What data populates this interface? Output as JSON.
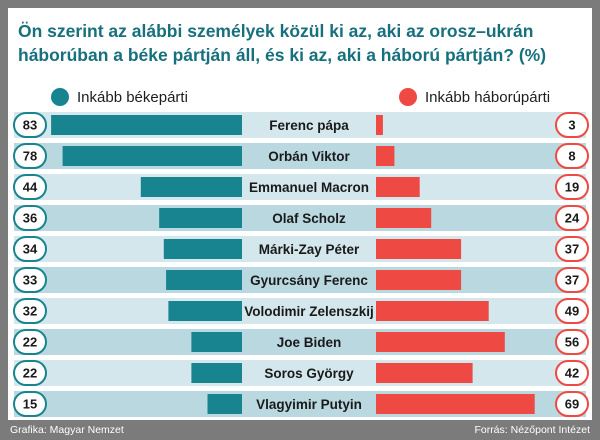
{
  "title_lines": [
    "Ön szerint az alábbi személyek közül ki az, aki az orosz–ukrán",
    "háborúban a béke pártján áll, és ki az, aki a háború pártján? (%)"
  ],
  "footer": {
    "left": "Grafika: Magyar Nemzet",
    "right": "Forrás: Nézőpont Intézet"
  },
  "colors": {
    "peace": "#17848f",
    "war": "#ee4a43",
    "title": "#17707d",
    "row_light": "#d3e7ec",
    "row_dark": "#b9d8e0",
    "frame": "#7b7b7b"
  },
  "chart_data": {
    "type": "bar",
    "categories": [
      "Ferenc pápa",
      "Orbán Viktor",
      "Emmanuel Macron",
      "Olaf Scholz",
      "Márki-Zay Péter",
      "Gyurcsány Ferenc",
      "Volodimir Zelenszkij",
      "Joe Biden",
      "Soros György",
      "Vlagyimir Putyin"
    ],
    "series": [
      {
        "name": "Inkább békepárti",
        "values": [
          83,
          78,
          44,
          36,
          34,
          33,
          32,
          22,
          22,
          15
        ]
      },
      {
        "name": "Inkább háborúpárti",
        "values": [
          3,
          8,
          19,
          24,
          37,
          37,
          49,
          56,
          42,
          69
        ]
      }
    ],
    "title": "Ön szerint az alábbi személyek közül ki az, aki az orosz–ukrán háborúban a béke pártján áll, és ki az, aki a háború pártján? (%)",
    "legend": "top",
    "grid": false
  }
}
